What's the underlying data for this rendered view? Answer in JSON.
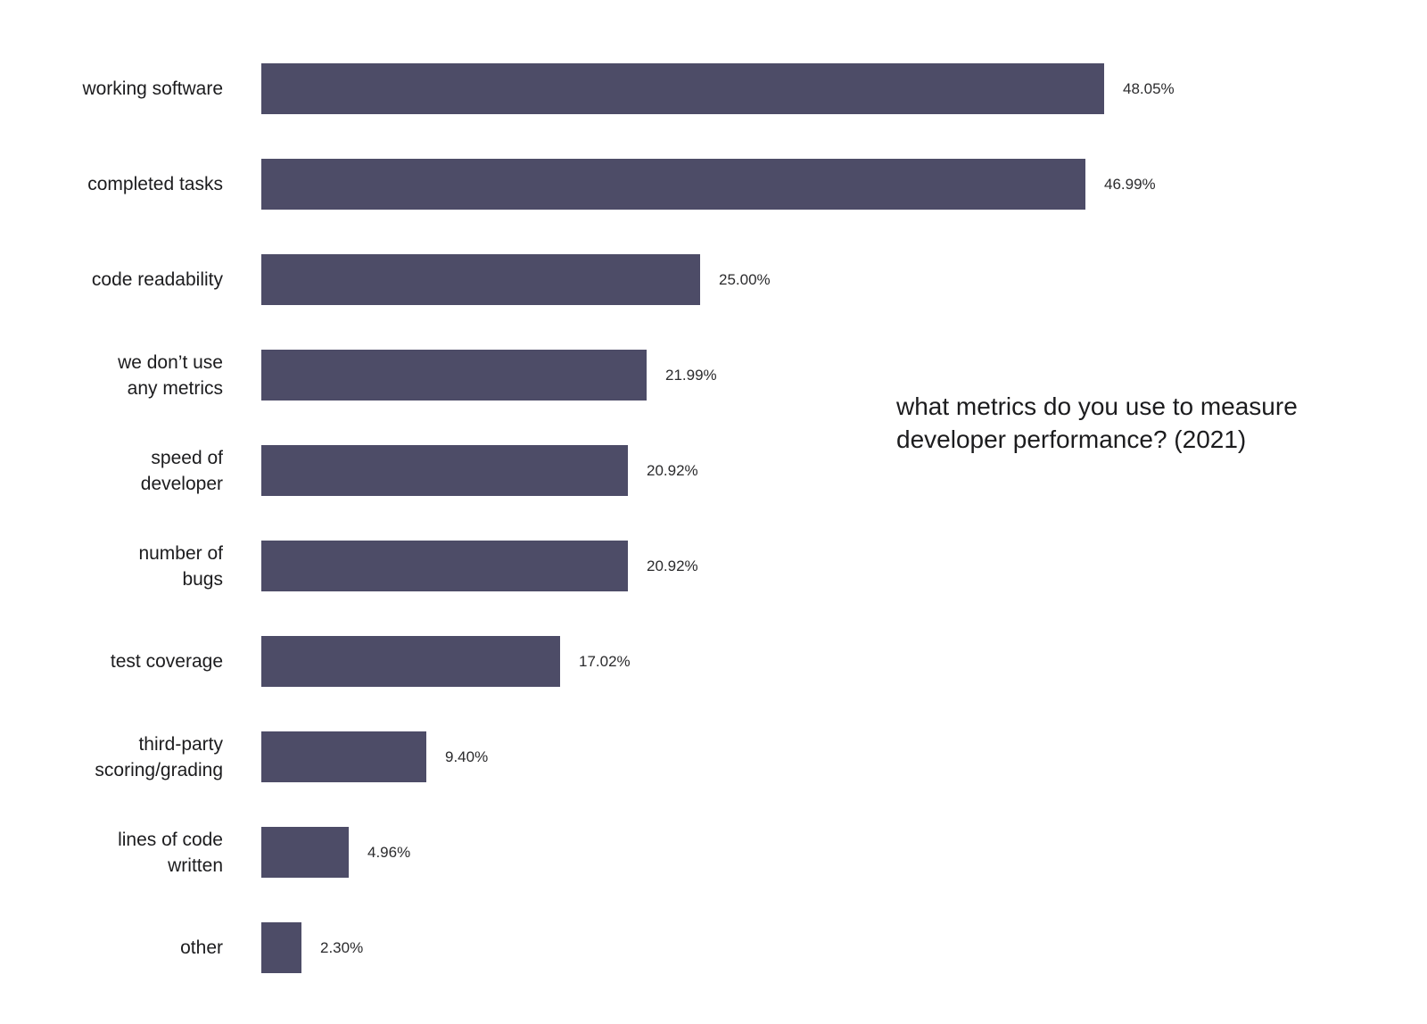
{
  "chart_data": {
    "type": "bar",
    "orientation": "horizontal",
    "title": "what metrics do you use to measure developer performance? (2021)",
    "title_lines": [
      "what metrics do you use to measure",
      "developer performance? (2021)"
    ],
    "categories": [
      "working software",
      "completed tasks",
      "code readability",
      "we don’t use any metrics",
      "speed of developer",
      "number of bugs",
      "test coverage",
      "third-party scoring/grading",
      "lines of code written",
      "other"
    ],
    "category_display": [
      "working software",
      "completed tasks",
      "code readability",
      "we don’t use\nany metrics",
      "speed of\ndeveloper",
      "number of\nbugs",
      "test coverage",
      "third-party\nscoring/grading",
      "lines of code\nwritten",
      "other"
    ],
    "values": [
      48.05,
      46.99,
      25.0,
      21.99,
      20.92,
      20.92,
      17.02,
      9.4,
      4.96,
      2.3
    ],
    "value_labels": [
      "48.05%",
      "46.99%",
      "25.00%",
      "21.99%",
      "20.92%",
      "20.92%",
      "17.02%",
      "9.40%",
      "4.96%",
      "2.30%"
    ],
    "xlim": [
      0,
      50
    ],
    "bar_color": "#4d4c67",
    "label_color": "#1c1c1e",
    "value_color": "#2b2b2d",
    "grid": false,
    "legend": false,
    "background": "#ffffff"
  }
}
